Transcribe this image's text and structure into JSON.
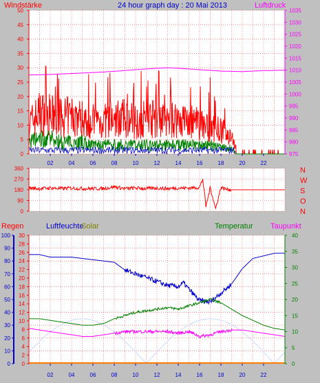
{
  "title": "24 hour graph day : 20 Mai 2013",
  "x_ticks": [
    "02",
    "04",
    "06",
    "08",
    "10",
    "12",
    "14",
    "16",
    "18",
    "20",
    "22"
  ],
  "colors": {
    "background": "#c0c0c0",
    "plot_bg": "#ffffff",
    "red": "#ff0000",
    "green": "#008000",
    "blue": "#0000cc",
    "magenta": "#ff00ff",
    "olive": "#808000",
    "orange": "#ff8000",
    "lightblue": "#c8d8ff"
  },
  "panel1": {
    "left_label": "Windstärke",
    "right_label": "Luftdruck",
    "left_ticks": [
      "50",
      "45",
      "40",
      "35",
      "30",
      "25",
      "20",
      "15",
      "10",
      "5",
      "0"
    ],
    "right_ticks": [
      "1035",
      "1030",
      "1025",
      "1020",
      "1015",
      "1010",
      "1005",
      "1000",
      "995",
      "990",
      "985",
      "980",
      "975"
    ]
  },
  "panel2": {
    "left_ticks": [
      "360",
      "270",
      "180",
      "90",
      "0"
    ],
    "compass": [
      "N",
      "W",
      "S",
      "O",
      "N"
    ]
  },
  "panel3": {
    "label_regen": "Regen",
    "label_feuchte": "Luftfeuchte",
    "label_solar": "Solar",
    "label_temp": "Temperatur",
    "label_taupunkt": "Taupunkt",
    "axis_feuchte": [
      "100",
      "90",
      "80",
      "70",
      "60",
      "50",
      "40",
      "30",
      "20",
      "10",
      "0"
    ],
    "axis_regen": [
      "30",
      "28",
      "26",
      "24",
      "22",
      "20",
      "18",
      "16",
      "14",
      "12",
      "10",
      "8",
      "6",
      "4",
      "2",
      "0"
    ],
    "axis_temp": [
      "40",
      "35",
      "30",
      "25",
      "20",
      "15",
      "10",
      "5",
      "0"
    ]
  },
  "chart_data": [
    {
      "type": "line",
      "xlim": [
        0,
        24
      ],
      "x_unit": "hour",
      "ylim_left": [
        0,
        50
      ],
      "ylim_right": [
        975,
        1035
      ],
      "series": [
        {
          "name": "Luftdruck",
          "axis": "right",
          "x": [
            0,
            2,
            4,
            6,
            8,
            10,
            12,
            13,
            14,
            16,
            18,
            20,
            22,
            24
          ],
          "values": [
            1008,
            1008.2,
            1008.6,
            1009,
            1009.5,
            1010.2,
            1010.8,
            1011,
            1010.8,
            1010.2,
            1009.6,
            1009.4,
            1009.8,
            1010
          ]
        },
        {
          "name": "Windstärke (max)",
          "axis": "left",
          "x": [
            0,
            1,
            2,
            3,
            4,
            5,
            6,
            7,
            8,
            9,
            10,
            11,
            12,
            13,
            14,
            15,
            16,
            17,
            18,
            19,
            19.5,
            20,
            21,
            22,
            23,
            24
          ],
          "values": [
            10,
            14,
            13,
            12,
            13,
            12,
            11,
            11,
            12,
            12,
            11,
            12,
            12,
            11,
            12,
            11,
            10,
            9,
            8,
            6,
            1,
            1,
            1,
            1,
            0,
            0
          ]
        },
        {
          "name": "Windstärke (avg)",
          "axis": "left",
          "x": [
            0,
            1,
            2,
            3,
            4,
            5,
            6,
            7,
            8,
            9,
            10,
            11,
            12,
            13,
            14,
            15,
            16,
            17,
            18,
            19,
            19.5,
            20,
            21,
            22,
            23,
            24
          ],
          "values": [
            4,
            5,
            5,
            4,
            4,
            4,
            3,
            3,
            3,
            3,
            3,
            3,
            3,
            3,
            3,
            3,
            3,
            3,
            2,
            2,
            0,
            0,
            0,
            0,
            0,
            0
          ]
        }
      ]
    },
    {
      "type": "line",
      "xlim": [
        0,
        24
      ],
      "x_unit": "hour",
      "ylim": [
        0,
        360
      ],
      "series": [
        {
          "name": "Windrichtung",
          "x": [
            0,
            1,
            2,
            3,
            4,
            5,
            6,
            7,
            8,
            9,
            10,
            11,
            12,
            13,
            14,
            15,
            16,
            16.3,
            16.6,
            17,
            17.5,
            18,
            18.5,
            19,
            20,
            21,
            22,
            23,
            24
          ],
          "values": [
            195,
            190,
            195,
            190,
            195,
            190,
            190,
            190,
            205,
            190,
            195,
            190,
            195,
            190,
            195,
            195,
            200,
            270,
            40,
            200,
            20,
            200,
            185,
            180,
            180,
            180,
            180,
            180,
            180
          ]
        }
      ]
    },
    {
      "type": "line",
      "xlim": [
        0,
        24
      ],
      "x_unit": "hour",
      "ylim_feuchte": [
        0,
        100
      ],
      "ylim_regen": [
        0,
        30
      ],
      "ylim_temp": [
        0,
        40
      ],
      "series": [
        {
          "name": "Luftfeuchte",
          "axis": "feuchte",
          "x": [
            0,
            1,
            2,
            3,
            4,
            5,
            6,
            7,
            8,
            9,
            10,
            11,
            12,
            13,
            14,
            14.5,
            15,
            16,
            17,
            18,
            19,
            20,
            21,
            22,
            23,
            24
          ],
          "values": [
            85,
            85,
            83,
            83,
            83,
            82,
            81,
            80,
            79,
            73,
            70,
            67,
            64,
            61,
            60,
            63,
            58,
            49,
            48,
            55,
            62,
            74,
            82,
            84,
            86,
            86
          ]
        },
        {
          "name": "Temperatur",
          "axis": "temp",
          "x": [
            0,
            1,
            2,
            3,
            4,
            5,
            6,
            7,
            8,
            9,
            10,
            11,
            12,
            13,
            14,
            15,
            16,
            17,
            18,
            19,
            20,
            21,
            22,
            23,
            24
          ],
          "values": [
            14,
            14,
            13.5,
            13,
            12.5,
            12,
            12,
            12.5,
            14,
            15,
            16,
            16.5,
            17,
            17.5,
            17,
            18,
            19,
            20,
            19,
            17,
            15,
            13.5,
            12,
            11,
            10.5
          ]
        },
        {
          "name": "Taupunkt",
          "axis": "temp",
          "x": [
            0,
            1,
            2,
            3,
            4,
            5,
            6,
            7,
            8,
            9,
            10,
            11,
            12,
            13,
            14,
            15,
            16,
            17,
            18,
            19,
            20,
            21,
            22,
            23,
            24
          ],
          "values": [
            11,
            10.5,
            10,
            9.5,
            9,
            8.5,
            8.5,
            9,
            9.5,
            10,
            10,
            10,
            10,
            10,
            9.5,
            10,
            8.5,
            9,
            10,
            10.5,
            10.5,
            10,
            9.5,
            9,
            8.5
          ]
        },
        {
          "name": "Solar",
          "axis": "temp",
          "x": [
            0,
            3,
            5,
            6,
            8,
            10,
            12,
            14,
            16,
            18,
            20,
            22,
            24
          ],
          "values": [
            0,
            0,
            0,
            0,
            0,
            0,
            0,
            0,
            0,
            0,
            0,
            0,
            0
          ]
        },
        {
          "name": "Regen",
          "axis": "regen",
          "x": [
            0,
            24
          ],
          "values": [
            0,
            0
          ]
        }
      ]
    }
  ]
}
